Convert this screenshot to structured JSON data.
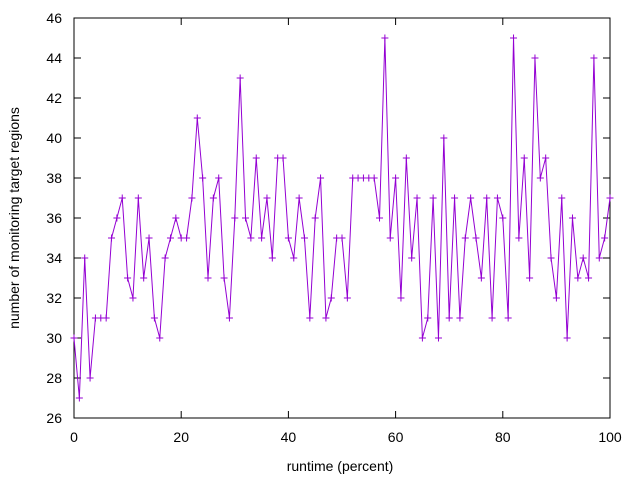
{
  "chart_data": {
    "type": "line",
    "title": "",
    "xlabel": "runtime (percent)",
    "ylabel": "number of monitoring target regions",
    "xlim": [
      0,
      100
    ],
    "ylim": [
      26,
      46
    ],
    "xticks": [
      0,
      20,
      40,
      60,
      80,
      100
    ],
    "yticks": [
      26,
      28,
      30,
      32,
      34,
      36,
      38,
      40,
      42,
      44,
      46
    ],
    "grid": false,
    "legend": "none",
    "marker": "plus",
    "line_color": "#9400d3",
    "series": [
      {
        "x": [
          0,
          1,
          2,
          3,
          4,
          5,
          6,
          7,
          8,
          9,
          10,
          11,
          12,
          13,
          14,
          15,
          16,
          17,
          18,
          19,
          20,
          21,
          22,
          23,
          24,
          25,
          26,
          27,
          28,
          29,
          30,
          31,
          32,
          33,
          34,
          35,
          36,
          37,
          38,
          39,
          40,
          41,
          42,
          43,
          44,
          45,
          46,
          47,
          48,
          49,
          50,
          51,
          52,
          53,
          54,
          55,
          56,
          57,
          58,
          59,
          60,
          61,
          62,
          63,
          64,
          65,
          66,
          67,
          68,
          69,
          70,
          71,
          72,
          73,
          74,
          75,
          76,
          77,
          78,
          79,
          80,
          81,
          82,
          83,
          84,
          85,
          86,
          87,
          88,
          89,
          90,
          91,
          92,
          93,
          94,
          95,
          96,
          97,
          98,
          99,
          100
        ],
        "y": [
          30,
          27,
          34,
          28,
          31,
          31,
          31,
          35,
          36,
          37,
          33,
          32,
          37,
          33,
          35,
          31,
          30,
          34,
          35,
          36,
          35,
          35,
          37,
          41,
          38,
          33,
          37,
          38,
          33,
          31,
          36,
          43,
          36,
          35,
          39,
          35,
          37,
          34,
          39,
          39,
          35,
          34,
          37,
          35,
          31,
          36,
          38,
          31,
          32,
          35,
          35,
          32,
          38,
          38,
          38,
          38,
          38,
          36,
          45,
          35,
          38,
          32,
          39,
          34,
          37,
          30,
          31,
          37,
          30,
          40,
          31,
          37,
          31,
          35,
          37,
          35,
          33,
          37,
          31,
          37,
          36,
          31,
          45,
          35,
          39,
          33,
          44,
          38,
          39,
          34,
          32,
          37,
          30,
          36,
          33,
          34,
          33,
          44,
          34,
          35,
          37
        ]
      }
    ]
  }
}
